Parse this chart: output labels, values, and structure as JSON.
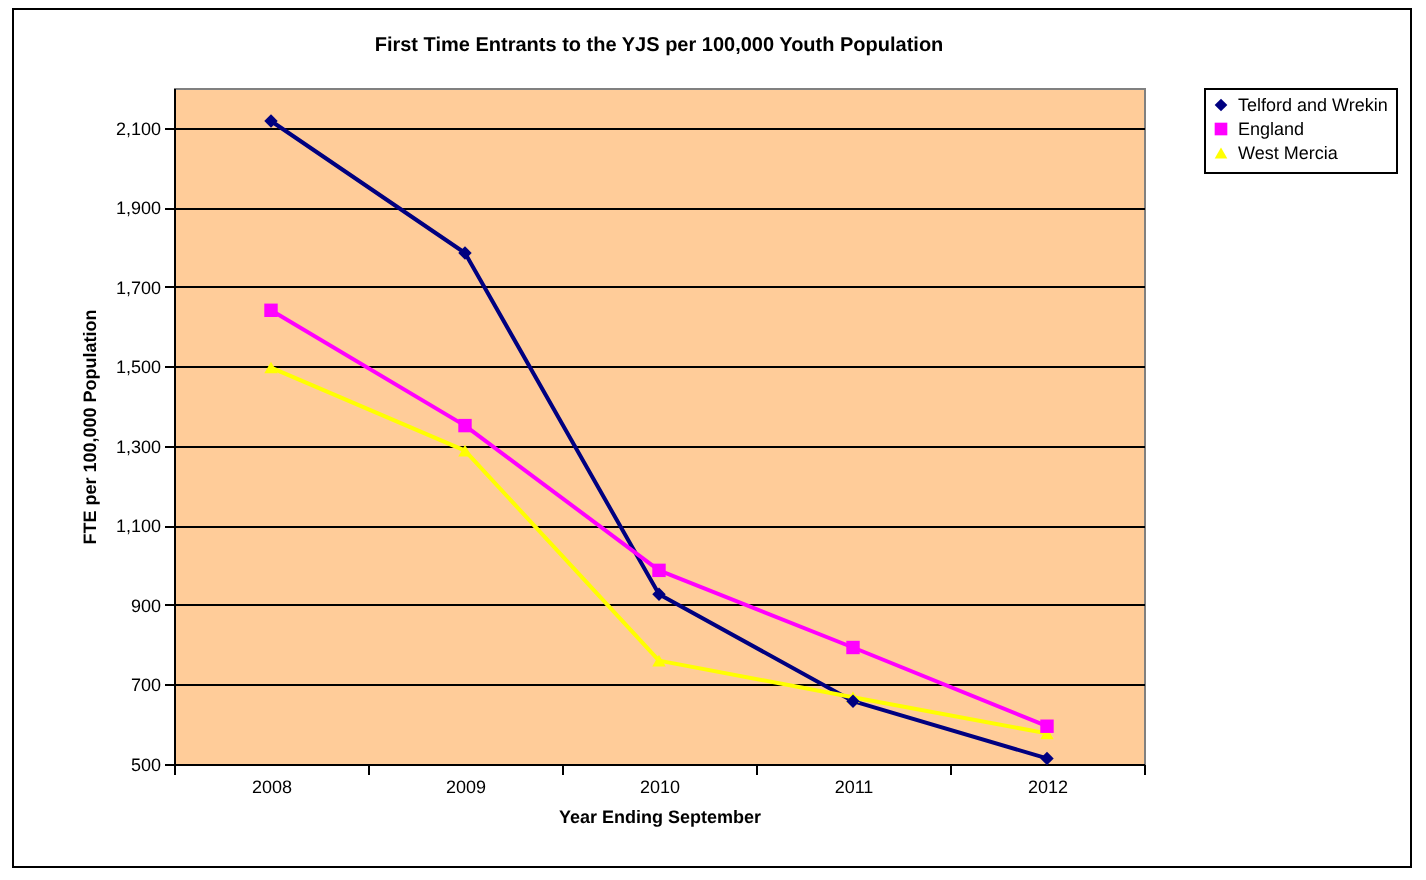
{
  "chart_data": {
    "type": "line",
    "title": "First Time Entrants to the YJS per 100,000 Youth Population",
    "xlabel": "Year Ending September",
    "ylabel": "FTE per 100,000 Population",
    "categories": [
      "2008",
      "2009",
      "2010",
      "2011",
      "2012"
    ],
    "series": [
      {
        "name": "Telford and Wrekin",
        "color": "#000080",
        "marker": "diamond",
        "values": [
          2117,
          1785,
          927,
          658,
          514
        ]
      },
      {
        "name": "England",
        "color": "#ff00ff",
        "marker": "square",
        "values": [
          1641,
          1351,
          987,
          793,
          595
        ]
      },
      {
        "name": "West Mercia",
        "color": "#ffff00",
        "marker": "triangle",
        "values": [
          1497,
          1288,
          760,
          668,
          577
        ]
      }
    ],
    "ylim": [
      500,
      2200
    ],
    "yticks": [
      {
        "value": 500,
        "label": "500"
      },
      {
        "value": 700,
        "label": "700"
      },
      {
        "value": 900,
        "label": "900"
      },
      {
        "value": 1100,
        "label": "1,100"
      },
      {
        "value": 1300,
        "label": "1,300"
      },
      {
        "value": 1500,
        "label": "1,500"
      },
      {
        "value": 1700,
        "label": "1,700"
      },
      {
        "value": 1900,
        "label": "1,900"
      },
      {
        "value": 2100,
        "label": "2,100"
      }
    ],
    "grid": "y",
    "legend": "right",
    "line_style": "solid"
  }
}
